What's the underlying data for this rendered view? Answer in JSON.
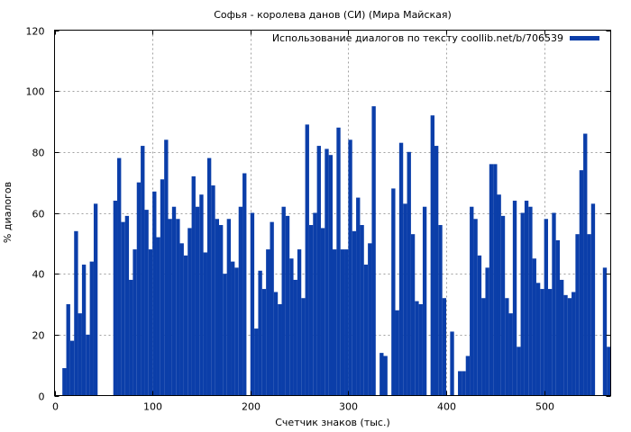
{
  "chart_data": {
    "type": "bar",
    "title": "Софья - королева данов (СИ) (Мира Майская)",
    "xlabel": "Счетчик знаков (тыс.)",
    "ylabel": "% диалогов",
    "xlim": [
      0,
      568
    ],
    "ylim": [
      0,
      120
    ],
    "xticks": [
      0,
      100,
      200,
      300,
      400,
      500
    ],
    "yticks": [
      0,
      20,
      40,
      60,
      80,
      100,
      120
    ],
    "grid": true,
    "legend_position": "top-right",
    "series": [
      {
        "name": "Использование диалогов по тексту coollib.net/b/706539",
        "color": "#0b3ea9",
        "x": [
          0,
          4,
          8,
          12,
          16,
          20,
          24,
          28,
          32,
          36,
          40,
          44,
          48,
          52,
          56,
          60,
          64,
          68,
          72,
          76,
          80,
          84,
          88,
          92,
          96,
          100,
          104,
          108,
          112,
          116,
          120,
          124,
          128,
          132,
          136,
          140,
          144,
          148,
          152,
          156,
          160,
          164,
          168,
          172,
          176,
          180,
          184,
          188,
          192,
          196,
          200,
          204,
          208,
          212,
          216,
          220,
          224,
          228,
          232,
          236,
          240,
          244,
          248,
          252,
          256,
          260,
          264,
          268,
          272,
          276,
          280,
          284,
          288,
          292,
          296,
          300,
          304,
          308,
          312,
          316,
          320,
          324,
          328,
          332,
          336,
          340,
          344,
          348,
          352,
          356,
          360,
          364,
          368,
          372,
          376,
          380,
          384,
          388,
          392,
          396,
          400,
          404,
          408,
          412,
          416,
          420,
          424,
          428,
          432,
          436,
          440,
          444,
          448,
          452,
          456,
          460,
          464,
          468,
          472,
          476,
          480,
          484,
          488,
          492,
          496,
          500,
          504,
          508,
          512,
          516,
          520,
          524,
          528,
          532,
          536,
          540,
          544,
          548,
          552,
          556,
          560,
          564
        ],
        "values": [
          0,
          0,
          9,
          30,
          18,
          54,
          27,
          43,
          20,
          44,
          63,
          0,
          0,
          0,
          0,
          64,
          78,
          57,
          59,
          38,
          48,
          70,
          82,
          61,
          48,
          67,
          52,
          71,
          84,
          58,
          62,
          58,
          50,
          46,
          55,
          72,
          62,
          66,
          47,
          78,
          69,
          58,
          56,
          40,
          58,
          44,
          42,
          62,
          73,
          0,
          60,
          22,
          41,
          35,
          48,
          57,
          34,
          30,
          62,
          59,
          45,
          38,
          48,
          32,
          89,
          56,
          60,
          82,
          55,
          81,
          79,
          48,
          88,
          48,
          48,
          84,
          54,
          65,
          56,
          43,
          50,
          95,
          0,
          14,
          13,
          0,
          68,
          28,
          83,
          63,
          80,
          53,
          31,
          30,
          62,
          0,
          92,
          82,
          56,
          32,
          0,
          21,
          0,
          8,
          8,
          13,
          62,
          58,
          46,
          32,
          42,
          76,
          76,
          66,
          59,
          32,
          27,
          64,
          16,
          60,
          64,
          62,
          45,
          37,
          35,
          58,
          35,
          60,
          51,
          38,
          33,
          32,
          34,
          53,
          74,
          86,
          53,
          63,
          0,
          0,
          42,
          16
        ]
      }
    ]
  }
}
